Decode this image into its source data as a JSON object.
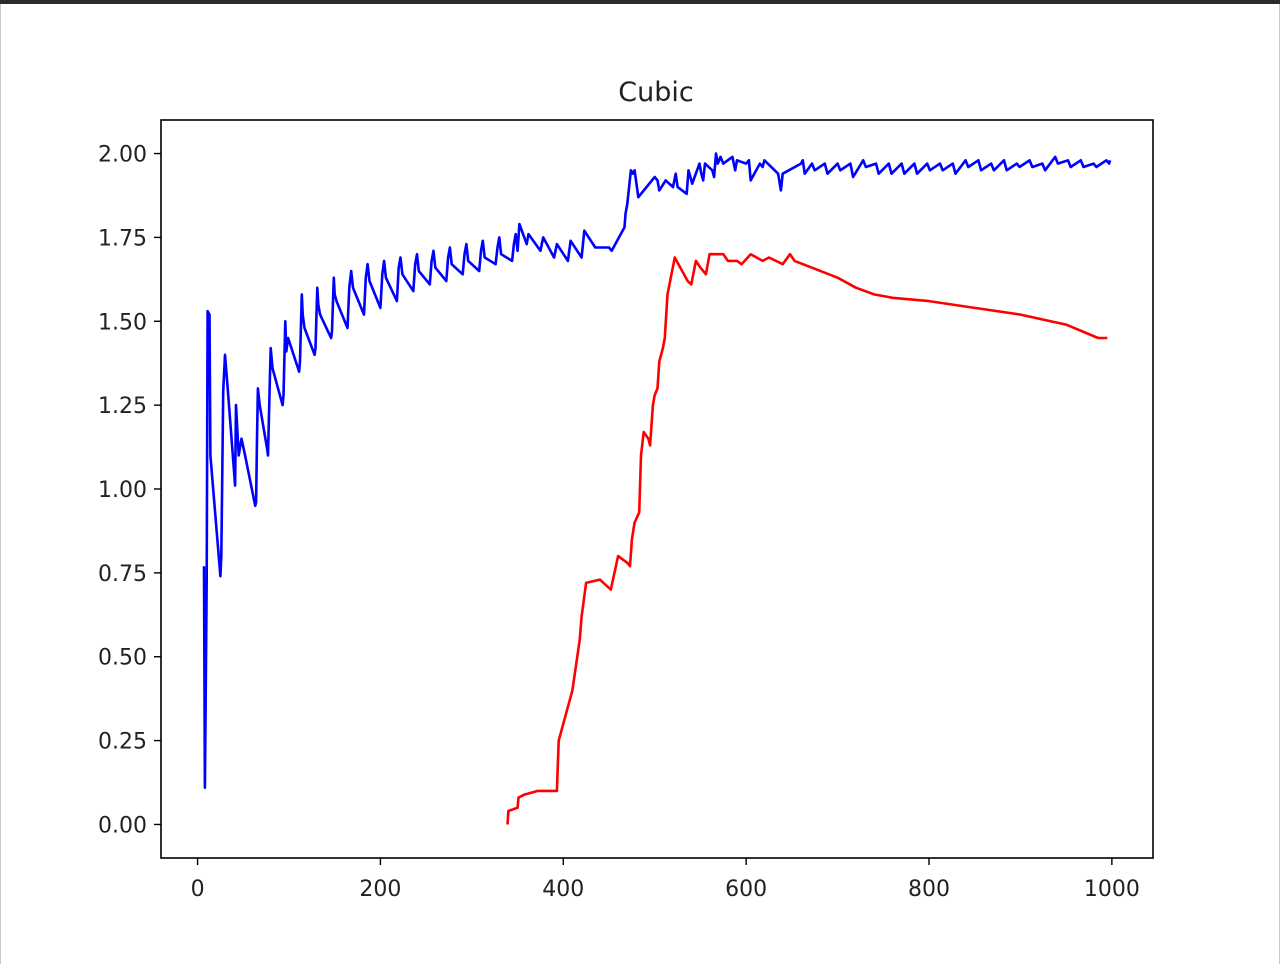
{
  "chart_data": {
    "type": "line",
    "title": "Cubic",
    "xlabel": "",
    "ylabel": "",
    "xlim": [
      -40,
      1045
    ],
    "ylim": [
      -0.1,
      2.1
    ],
    "x_ticks": [
      0,
      200,
      400,
      600,
      800,
      1000
    ],
    "x_tick_labels": [
      "0",
      "200",
      "400",
      "600",
      "800",
      "1000"
    ],
    "y_ticks": [
      0.0,
      0.25,
      0.5,
      0.75,
      1.0,
      1.25,
      1.5,
      1.75,
      2.0
    ],
    "y_tick_labels": [
      "0.00",
      "0.25",
      "0.50",
      "0.75",
      "1.00",
      "1.25",
      "1.50",
      "1.75",
      "2.00"
    ],
    "grid": false,
    "series": [
      {
        "color": "#0000ff",
        "x": [
          7,
          8,
          10,
          11,
          13,
          14,
          25,
          26,
          27,
          28,
          30,
          33,
          40,
          41,
          42,
          43,
          45,
          48,
          52,
          63,
          64,
          65,
          66,
          68,
          76,
          77,
          79,
          80,
          82,
          93,
          94,
          96,
          97,
          99,
          111,
          112,
          114,
          115,
          117,
          128,
          129,
          131,
          132,
          134,
          146,
          147,
          149,
          150,
          152,
          164,
          166,
          168,
          170,
          182,
          184,
          186,
          188,
          200,
          202,
          204,
          206,
          218,
          220,
          222,
          224,
          236,
          238,
          240,
          242,
          254,
          256,
          258,
          260,
          272,
          274,
          276,
          278,
          290,
          292,
          294,
          296,
          308,
          310,
          312,
          314,
          326,
          328,
          330,
          332,
          344,
          346,
          348,
          350,
          352,
          360,
          362,
          375,
          378,
          390,
          393,
          405,
          408,
          420,
          423,
          435,
          438,
          450,
          453,
          467,
          468,
          470,
          472,
          474,
          476,
          478,
          482,
          500,
          503,
          505,
          512,
          520,
          523,
          525,
          535,
          537,
          539,
          541,
          549,
          551,
          553,
          555,
          563,
          565,
          567,
          569,
          572,
          575,
          585,
          588,
          590,
          600,
          603,
          605,
          615,
          618,
          620,
          635,
          638,
          640,
          660,
          662,
          664,
          672,
          675,
          686,
          689,
          700,
          703,
          714,
          717,
          728,
          731,
          742,
          745,
          756,
          759,
          770,
          773,
          784,
          787,
          798,
          801,
          812,
          815,
          826,
          829,
          840,
          843,
          854,
          857,
          868,
          871,
          882,
          885,
          896,
          899,
          910,
          913,
          924,
          927,
          938,
          941,
          952,
          955,
          966,
          969,
          980,
          983,
          994,
          997,
          998
        ],
        "y": [
          0.77,
          0.11,
          0.73,
          1.53,
          1.52,
          1.1,
          0.74,
          0.8,
          1.05,
          1.29,
          1.4,
          1.3,
          1.05,
          1.01,
          1.25,
          1.2,
          1.1,
          1.15,
          1.1,
          0.95,
          0.96,
          1.15,
          1.3,
          1.25,
          1.12,
          1.1,
          1.32,
          1.42,
          1.36,
          1.25,
          1.28,
          1.5,
          1.41,
          1.45,
          1.35,
          1.38,
          1.58,
          1.52,
          1.48,
          1.4,
          1.42,
          1.6,
          1.55,
          1.52,
          1.45,
          1.47,
          1.63,
          1.58,
          1.56,
          1.48,
          1.6,
          1.65,
          1.6,
          1.52,
          1.63,
          1.67,
          1.62,
          1.54,
          1.64,
          1.68,
          1.63,
          1.56,
          1.66,
          1.69,
          1.64,
          1.59,
          1.67,
          1.7,
          1.65,
          1.61,
          1.68,
          1.71,
          1.66,
          1.62,
          1.69,
          1.72,
          1.67,
          1.64,
          1.7,
          1.73,
          1.68,
          1.65,
          1.71,
          1.74,
          1.69,
          1.67,
          1.72,
          1.75,
          1.7,
          1.68,
          1.73,
          1.76,
          1.71,
          1.79,
          1.73,
          1.76,
          1.71,
          1.75,
          1.69,
          1.73,
          1.68,
          1.74,
          1.69,
          1.77,
          1.72,
          1.72,
          1.72,
          1.71,
          1.78,
          1.82,
          1.85,
          1.9,
          1.95,
          1.94,
          1.95,
          1.87,
          1.93,
          1.92,
          1.89,
          1.92,
          1.9,
          1.94,
          1.9,
          1.88,
          1.95,
          1.93,
          1.91,
          1.97,
          1.94,
          1.92,
          1.97,
          1.95,
          1.93,
          2.0,
          1.97,
          1.99,
          1.97,
          1.99,
          1.95,
          1.98,
          1.97,
          1.98,
          1.92,
          1.97,
          1.96,
          1.98,
          1.94,
          1.89,
          1.94,
          1.97,
          1.98,
          1.94,
          1.97,
          1.95,
          1.97,
          1.94,
          1.97,
          1.95,
          1.97,
          1.93,
          1.98,
          1.96,
          1.97,
          1.94,
          1.97,
          1.94,
          1.97,
          1.94,
          1.97,
          1.94,
          1.97,
          1.95,
          1.97,
          1.95,
          1.97,
          1.94,
          1.98,
          1.96,
          1.98,
          1.95,
          1.97,
          1.95,
          1.98,
          1.95,
          1.97,
          1.96,
          1.98,
          1.96,
          1.97,
          1.95,
          1.99,
          1.97,
          1.98,
          1.96,
          1.98,
          1.96,
          1.97,
          1.96,
          1.98,
          1.97,
          1.98
        ]
      },
      {
        "color": "#ff0000",
        "x": [
          339,
          340,
          350,
          351,
          358,
          359,
          372,
          373,
          387,
          393,
          395,
          400,
          410,
          418,
          420,
          425,
          440,
          448,
          452,
          460,
          470,
          473,
          475,
          478,
          483,
          485,
          488,
          493,
          495,
          498,
          500,
          503,
          505,
          509,
          511,
          514,
          522,
          528,
          532,
          536,
          540,
          545,
          550,
          556,
          560,
          575,
          580,
          590,
          595,
          605,
          618,
          625,
          640,
          648,
          653,
          700,
          720,
          740,
          760,
          800,
          850,
          900,
          950,
          985,
          990,
          995
        ],
        "y": [
          0.0,
          0.04,
          0.05,
          0.08,
          0.09,
          0.09,
          0.1,
          0.1,
          0.1,
          0.1,
          0.25,
          0.3,
          0.4,
          0.55,
          0.62,
          0.72,
          0.73,
          0.71,
          0.7,
          0.8,
          0.78,
          0.77,
          0.85,
          0.9,
          0.93,
          1.1,
          1.17,
          1.15,
          1.13,
          1.25,
          1.28,
          1.3,
          1.38,
          1.42,
          1.45,
          1.58,
          1.69,
          1.66,
          1.64,
          1.62,
          1.61,
          1.68,
          1.66,
          1.64,
          1.7,
          1.7,
          1.68,
          1.68,
          1.67,
          1.7,
          1.68,
          1.69,
          1.67,
          1.7,
          1.68,
          1.63,
          1.6,
          1.58,
          1.57,
          1.56,
          1.54,
          1.52,
          1.49,
          1.45,
          1.45,
          1.45
        ]
      }
    ]
  }
}
